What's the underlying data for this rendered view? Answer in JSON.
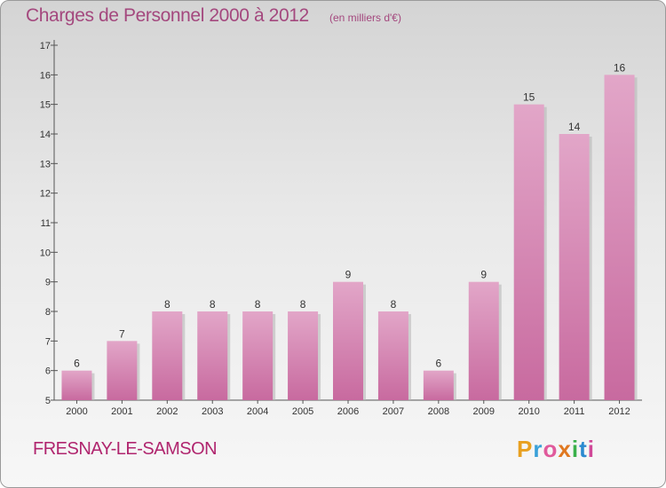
{
  "chart_data": {
    "type": "bar",
    "title": "Charges de Personnel 2000 à 2012",
    "subtitle": "(en milliers d'€)",
    "categories": [
      "2000",
      "2001",
      "2002",
      "2003",
      "2004",
      "2005",
      "2006",
      "2007",
      "2008",
      "2009",
      "2010",
      "2011",
      "2012"
    ],
    "values": [
      6,
      7,
      8,
      8,
      8,
      8,
      9,
      8,
      6,
      9,
      15,
      14,
      16
    ],
    "data_labels": [
      "6",
      "7",
      "8",
      "8",
      "8",
      "8",
      "9",
      "8",
      "6",
      "9",
      "15",
      "14",
      "16"
    ],
    "ylim": [
      5,
      17
    ],
    "yticks": [
      "5",
      "6",
      "7",
      "8",
      "9",
      "10",
      "11",
      "12",
      "13",
      "14",
      "15",
      "16",
      "17"
    ],
    "grid": false,
    "bar_color": "#c86a9f"
  },
  "footer": {
    "commune": "FRESNAY-LE-SAMSON",
    "logo_letters": [
      "P",
      "r",
      "o",
      "x",
      "i",
      "t",
      "i"
    ],
    "logo_colors": [
      "#e8a020",
      "#3aa0d8",
      "#e05a9c",
      "#e07820",
      "#3ab04a",
      "#2a8ad0",
      "#d04898"
    ]
  }
}
